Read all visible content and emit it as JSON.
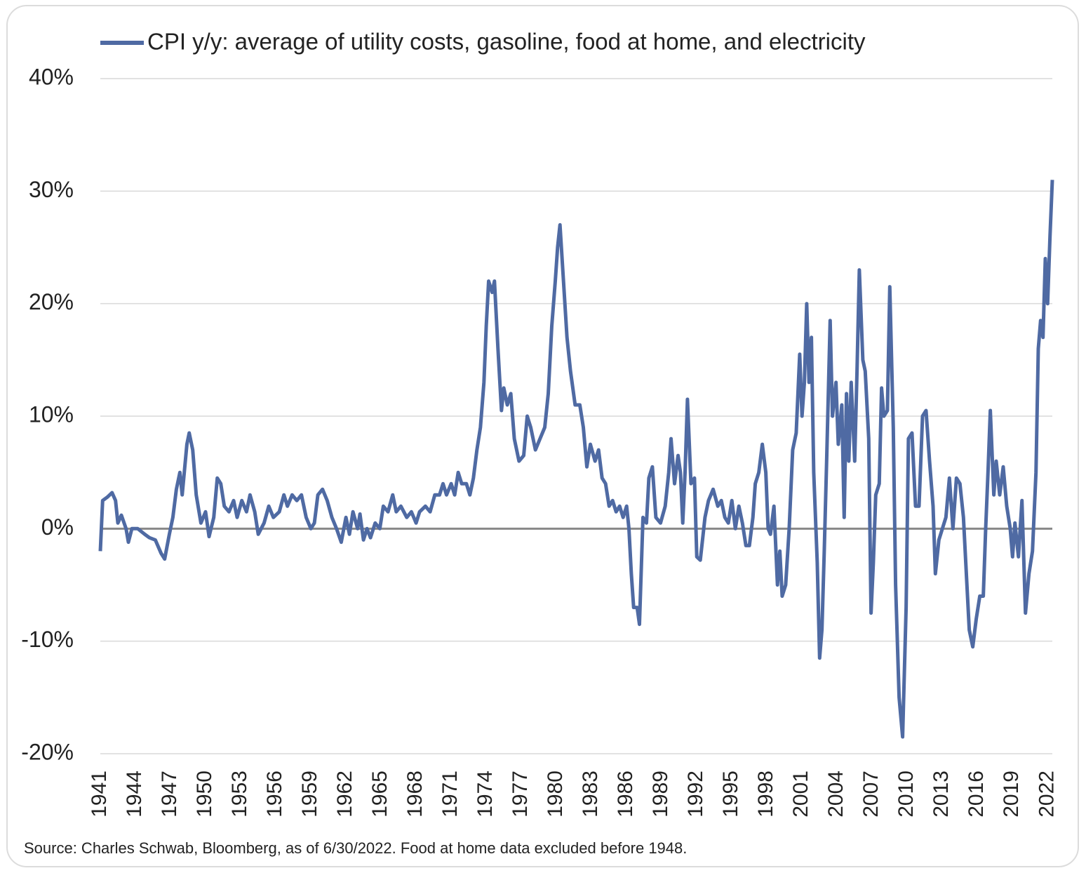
{
  "chart_data": {
    "type": "line",
    "source": "Source: Charles Schwab, Bloomberg, as of 6/30/2022.  Food at home data excluded before 1948.",
    "x": [
      1941.0,
      1941.2,
      1941.6,
      1942.0,
      1942.3,
      1942.5,
      1942.8,
      1943.2,
      1943.4,
      1943.7,
      1944.2,
      1944.8,
      1945.2,
      1945.7,
      1946.2,
      1946.5,
      1946.9,
      1947.2,
      1947.5,
      1947.8,
      1948.0,
      1948.4,
      1948.6,
      1948.9,
      1949.2,
      1949.6,
      1950.0,
      1950.3,
      1950.7,
      1951.0,
      1951.3,
      1951.6,
      1952.0,
      1952.4,
      1952.7,
      1953.1,
      1953.5,
      1953.8,
      1954.2,
      1954.5,
      1955.0,
      1955.4,
      1955.8,
      1956.3,
      1956.7,
      1957.0,
      1957.4,
      1957.8,
      1958.2,
      1958.6,
      1959.0,
      1959.3,
      1959.6,
      1960.0,
      1960.4,
      1960.8,
      1961.2,
      1961.6,
      1962.0,
      1962.3,
      1962.6,
      1963.0,
      1963.2,
      1963.5,
      1963.8,
      1964.1,
      1964.5,
      1964.9,
      1965.2,
      1965.6,
      1966.0,
      1966.3,
      1966.7,
      1967.2,
      1967.6,
      1968.0,
      1968.3,
      1968.8,
      1969.2,
      1969.6,
      1970.0,
      1970.3,
      1970.6,
      1971.0,
      1971.3,
      1971.6,
      1971.9,
      1972.3,
      1972.6,
      1972.9,
      1973.2,
      1973.5,
      1973.8,
      1974.0,
      1974.2,
      1974.5,
      1974.7,
      1975.0,
      1975.3,
      1975.5,
      1975.8,
      1976.1,
      1976.4,
      1976.8,
      1977.2,
      1977.5,
      1977.8,
      1978.2,
      1978.6,
      1979.0,
      1979.3,
      1979.6,
      1979.9,
      1980.1,
      1980.3,
      1980.6,
      1980.9,
      1981.2,
      1981.6,
      1982.0,
      1982.3,
      1982.6,
      1982.9,
      1983.3,
      1983.6,
      1983.9,
      1984.2,
      1984.5,
      1984.8,
      1985.1,
      1985.4,
      1985.7,
      1986.0,
      1986.2,
      1986.4,
      1986.6,
      1986.9,
      1987.1,
      1987.4,
      1987.7,
      1987.9,
      1988.2,
      1988.5,
      1988.9,
      1989.3,
      1989.6,
      1989.8,
      1990.1,
      1990.4,
      1990.6,
      1990.8,
      1991.0,
      1991.2,
      1991.5,
      1991.8,
      1992.0,
      1992.3,
      1992.7,
      1993.0,
      1993.4,
      1993.8,
      1994.1,
      1994.4,
      1994.7,
      1995.0,
      1995.3,
      1995.6,
      1995.9,
      1996.2,
      1996.5,
      1996.8,
      1997.0,
      1997.3,
      1997.6,
      1997.9,
      1998.1,
      1998.3,
      1998.6,
      1998.9,
      1999.1,
      1999.3,
      1999.6,
      1999.9,
      2000.2,
      2000.5,
      2000.8,
      2001.0,
      2001.2,
      2001.4,
      2001.6,
      2001.8,
      2002.0,
      2002.3,
      2002.5,
      2002.7,
      2002.9,
      2003.1,
      2003.4,
      2003.6,
      2003.9,
      2004.1,
      2004.4,
      2004.6,
      2004.8,
      2005.0,
      2005.2,
      2005.5,
      2005.7,
      2005.9,
      2006.2,
      2006.4,
      2006.7,
      2006.9,
      2007.1,
      2007.3,
      2007.6,
      2007.8,
      2008.0,
      2008.3,
      2008.5,
      2008.8,
      2009.0,
      2009.3,
      2009.6,
      2009.9,
      2010.1,
      2010.4,
      2010.7,
      2011.0,
      2011.3,
      2011.6,
      2011.9,
      2012.2,
      2012.4,
      2012.7,
      2013.0,
      2013.3,
      2013.6,
      2013.9,
      2014.2,
      2014.5,
      2014.8,
      2015.0,
      2015.3,
      2015.6,
      2015.9,
      2016.2,
      2016.5,
      2016.7,
      2016.9,
      2017.1,
      2017.4,
      2017.6,
      2017.9,
      2018.2,
      2018.5,
      2018.8,
      2019.0,
      2019.2,
      2019.5,
      2019.8,
      2020.1,
      2020.4,
      2020.7,
      2021.0,
      2021.2,
      2021.4,
      2021.6,
      2021.8,
      2022.0,
      2022.2,
      2022.4
    ],
    "series": [
      {
        "name": "CPI y/y: average of utility costs, gasoline, food at home, and electricity",
        "color": "#4f6aa3",
        "values": [
          -2,
          2.5,
          2.8,
          3.2,
          2.5,
          0.5,
          1.2,
          0,
          -1.2,
          0,
          0,
          -0.5,
          -0.8,
          -1,
          -2.2,
          -2.7,
          -0.5,
          1,
          3.5,
          5,
          3,
          7.5,
          8.5,
          7,
          3,
          0.5,
          1.5,
          -0.7,
          1,
          4.5,
          4,
          2,
          1.5,
          2.5,
          1,
          2.5,
          1.5,
          3,
          1.5,
          -0.5,
          0.5,
          2,
          1,
          1.5,
          3,
          2,
          3,
          2.5,
          3,
          1,
          0,
          0.5,
          3,
          3.5,
          2.5,
          1,
          0,
          -1.2,
          1,
          -0.5,
          1.5,
          0,
          1.3,
          -1,
          0,
          -0.8,
          0.5,
          0,
          2,
          1.5,
          3,
          1.5,
          2,
          1,
          1.5,
          0.5,
          1.5,
          2,
          1.5,
          3,
          3,
          4,
          3,
          4,
          3,
          5,
          4,
          4,
          3,
          4.5,
          7,
          9,
          13,
          18,
          22,
          21,
          22,
          16,
          10.5,
          12.5,
          11,
          12,
          8,
          6,
          6.5,
          10,
          9,
          7,
          8,
          9,
          12,
          18,
          22,
          25,
          27,
          22,
          17,
          14,
          11,
          11,
          9,
          5.5,
          7.5,
          6,
          7,
          4.5,
          4,
          2,
          2.5,
          1.5,
          2,
          1,
          2,
          0,
          -4,
          -7,
          -7,
          -8.5,
          1,
          0.5,
          4.5,
          5.5,
          1,
          0.5,
          2,
          5,
          8,
          4,
          6.5,
          5,
          0.5,
          5,
          11.5,
          4,
          4.5,
          -2.5,
          -2.8,
          1,
          2.5,
          3.5,
          2,
          2.5,
          1,
          0.5,
          2.5,
          0,
          2,
          0.5,
          -1.5,
          -1.5,
          1,
          4,
          5,
          7.5,
          5,
          0,
          -0.5,
          2,
          -5,
          -2,
          -6,
          -5,
          0,
          7,
          8.5,
          15.5,
          10,
          13,
          20,
          13,
          17,
          5,
          -3,
          -11.5,
          -9,
          -2,
          6,
          18.5,
          10,
          13,
          7.5,
          11,
          1,
          12,
          6,
          13,
          6,
          14,
          23,
          15,
          14,
          8,
          -7.5,
          -3,
          3,
          4,
          12.5,
          10,
          10.5,
          21.5,
          9,
          -5,
          -15,
          -18.5,
          -7,
          8,
          8.5,
          2,
          2,
          10,
          10.5,
          6,
          2,
          -4,
          -1,
          0,
          1,
          4.5,
          0,
          4.5,
          4,
          1,
          -3,
          -9,
          -10.5,
          -8,
          -6,
          -6,
          0,
          5,
          10.5,
          3,
          6,
          3,
          5.5,
          2,
          0,
          -2.5,
          0.5,
          -2.5,
          2.5,
          -7.5,
          -4,
          -2,
          5,
          16,
          18.5,
          17,
          24,
          20,
          26,
          31
        ]
      }
    ],
    "xlim": [
      1941,
      2022.4
    ],
    "xticks": [
      1941,
      1944,
      1947,
      1950,
      1953,
      1956,
      1959,
      1962,
      1965,
      1968,
      1971,
      1974,
      1977,
      1980,
      1983,
      1986,
      1989,
      1992,
      1995,
      1998,
      2001,
      2004,
      2007,
      2010,
      2013,
      2016,
      2019,
      2022
    ],
    "ylim": [
      -20,
      40
    ],
    "yticks": [
      {
        "value": -20,
        "label": "-20%"
      },
      {
        "value": -10,
        "label": "-10%"
      },
      {
        "value": 0,
        "label": "0%"
      },
      {
        "value": 10,
        "label": "10%"
      },
      {
        "value": 20,
        "label": "20%"
      },
      {
        "value": 30,
        "label": "30%"
      },
      {
        "value": 40,
        "label": "40%"
      }
    ],
    "grid": true,
    "legend": "top"
  }
}
